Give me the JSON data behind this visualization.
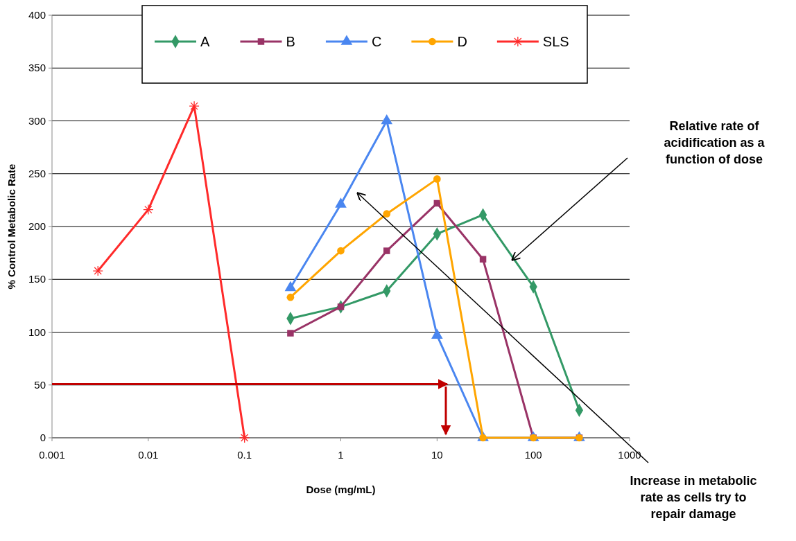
{
  "chart_data": {
    "type": "line",
    "xlabel": "Dose (mg/mL)",
    "ylabel": "% Control Metabolic Rate",
    "log": "x",
    "xlim": [
      0.001,
      1000
    ],
    "xticks": [
      0.001,
      0.01,
      0.1,
      1,
      10,
      100,
      1000
    ],
    "ylim": [
      0,
      400
    ],
    "yticks": [
      0,
      50,
      100,
      150,
      200,
      250,
      300,
      350,
      400
    ],
    "grid": "y",
    "legend": "top",
    "series": [
      {
        "name": "A",
        "color": "#339966",
        "marker": "diamond",
        "x": [
          0.3,
          1,
          3,
          10,
          30,
          100,
          300
        ],
        "values": [
          113,
          124,
          139,
          193,
          211,
          143,
          26
        ]
      },
      {
        "name": "B",
        "color": "#993366",
        "marker": "square",
        "x": [
          0.3,
          1,
          3,
          10,
          30,
          100,
          300
        ],
        "values": [
          99,
          124,
          177,
          222,
          169,
          0,
          0
        ]
      },
      {
        "name": "C",
        "color": "#4a86f0",
        "marker": "triangle",
        "x": [
          0.3,
          1,
          3,
          10,
          30,
          100,
          300
        ],
        "values": [
          142,
          221,
          300,
          97,
          0,
          0,
          0
        ]
      },
      {
        "name": "D",
        "color": "#ffa500",
        "marker": "circle",
        "x": [
          0.3,
          1,
          3,
          10,
          30,
          100,
          300
        ],
        "values": [
          133,
          177,
          212,
          245,
          0,
          0,
          0
        ]
      },
      {
        "name": "SLS",
        "color": "#ff2a2a",
        "marker": "cross",
        "x": [
          0.003,
          0.01,
          0.03,
          0.1
        ],
        "values": [
          158,
          216,
          314,
          0
        ]
      }
    ],
    "annotations": [
      "Relative rate of acidification as a function of dose",
      "Increase in metabolic rate as cells try to repair damage"
    ]
  }
}
